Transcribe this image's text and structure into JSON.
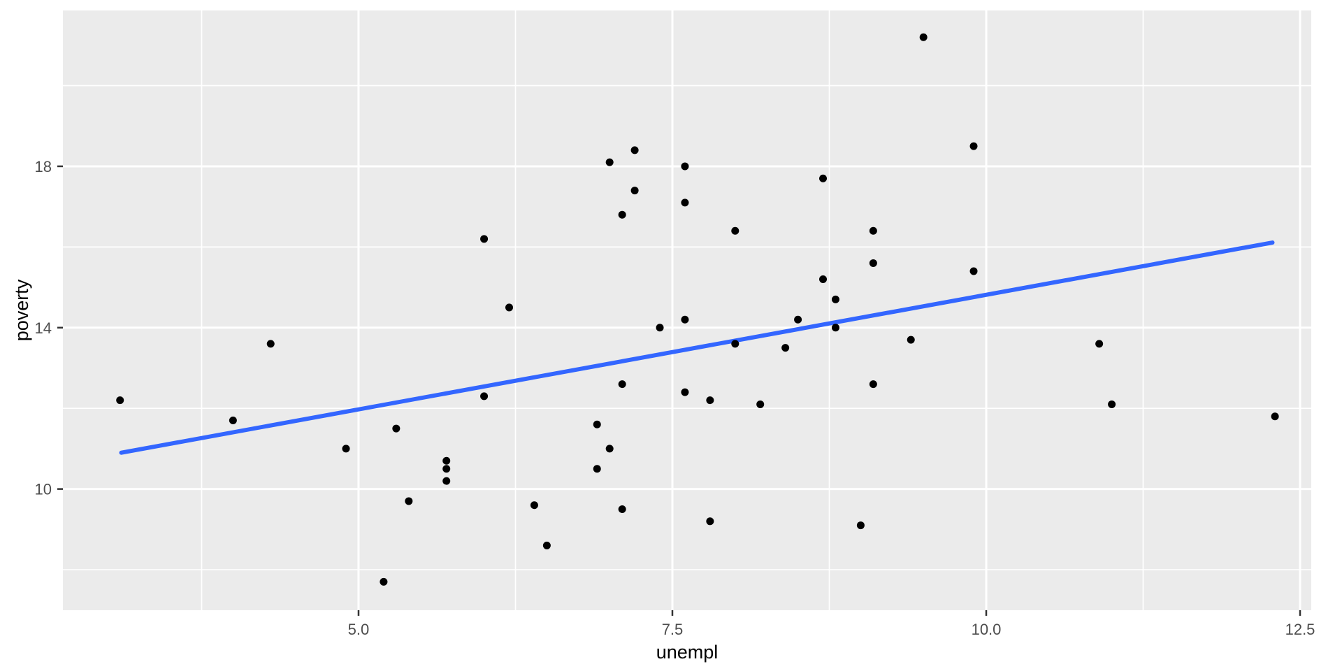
{
  "figure": {
    "background": "#ffffff",
    "panel_background": "#ebebeb",
    "grid_color": "#ffffff",
    "point_color": "#000000",
    "smooth_line_color": "#3366ff",
    "tick_mark_color": "#333333",
    "tick_label_color": "#4d4d4d",
    "axis_title_color": "#000000"
  },
  "chart_data": {
    "type": "scatter",
    "title": "",
    "xlabel": "unempl",
    "ylabel": "poverty",
    "grid": true,
    "legend": false,
    "xlim": [
      2.645,
      12.589
    ],
    "ylim": [
      6.996,
      21.863
    ],
    "x_ticks": [
      5.0,
      7.5,
      10.0,
      12.5
    ],
    "x_tick_labels": [
      "5.0",
      "7.5",
      "10.0",
      "12.5"
    ],
    "x_minor_gridlines": [
      3.75,
      6.25,
      8.75,
      11.25
    ],
    "y_ticks": [
      10,
      14,
      18
    ],
    "y_tick_labels": [
      "10",
      "14",
      "18"
    ],
    "y_minor_gridlines": [
      8,
      12,
      16,
      20
    ],
    "points": [
      [
        7.2,
        18.4
      ],
      [
        7.0,
        18.1
      ],
      [
        7.6,
        18.0
      ],
      [
        8.7,
        17.7
      ],
      [
        7.2,
        17.4
      ],
      [
        7.6,
        17.1
      ],
      [
        7.1,
        16.8
      ],
      [
        8.0,
        16.4
      ],
      [
        6.0,
        16.2
      ],
      [
        9.1,
        16.4
      ],
      [
        9.1,
        15.6
      ],
      [
        8.7,
        15.2
      ],
      [
        8.8,
        14.7
      ],
      [
        6.2,
        14.5
      ],
      [
        9.5,
        21.2
      ],
      [
        9.9,
        18.5
      ],
      [
        9.9,
        15.4
      ],
      [
        4.3,
        13.6
      ],
      [
        3.1,
        12.2
      ],
      [
        4.0,
        11.7
      ],
      [
        5.3,
        11.5
      ],
      [
        4.9,
        11.0
      ],
      [
        5.7,
        10.7
      ],
      [
        5.7,
        10.5
      ],
      [
        5.7,
        10.2
      ],
      [
        5.4,
        9.7
      ],
      [
        5.2,
        7.7
      ],
      [
        7.6,
        14.2
      ],
      [
        7.4,
        14.0
      ],
      [
        8.5,
        14.2
      ],
      [
        8.8,
        14.0
      ],
      [
        8.0,
        13.6
      ],
      [
        8.4,
        13.5
      ],
      [
        7.1,
        12.6
      ],
      [
        6.0,
        12.3
      ],
      [
        7.6,
        12.4
      ],
      [
        7.8,
        12.2
      ],
      [
        8.2,
        12.1
      ],
      [
        9.1,
        12.6
      ],
      [
        6.9,
        11.6
      ],
      [
        7.0,
        11.0
      ],
      [
        6.9,
        10.5
      ],
      [
        6.4,
        9.6
      ],
      [
        7.1,
        9.5
      ],
      [
        7.8,
        9.2
      ],
      [
        9.0,
        9.1
      ],
      [
        6.5,
        8.6
      ],
      [
        9.4,
        13.7
      ],
      [
        10.9,
        13.6
      ],
      [
        11.0,
        12.1
      ],
      [
        12.3,
        11.8
      ]
    ],
    "smooth_line": {
      "x_start": 3.11,
      "y_start": 10.9,
      "x_end": 12.28,
      "y_end": 16.11,
      "slope": 0.568,
      "intercept": 9.13
    }
  }
}
